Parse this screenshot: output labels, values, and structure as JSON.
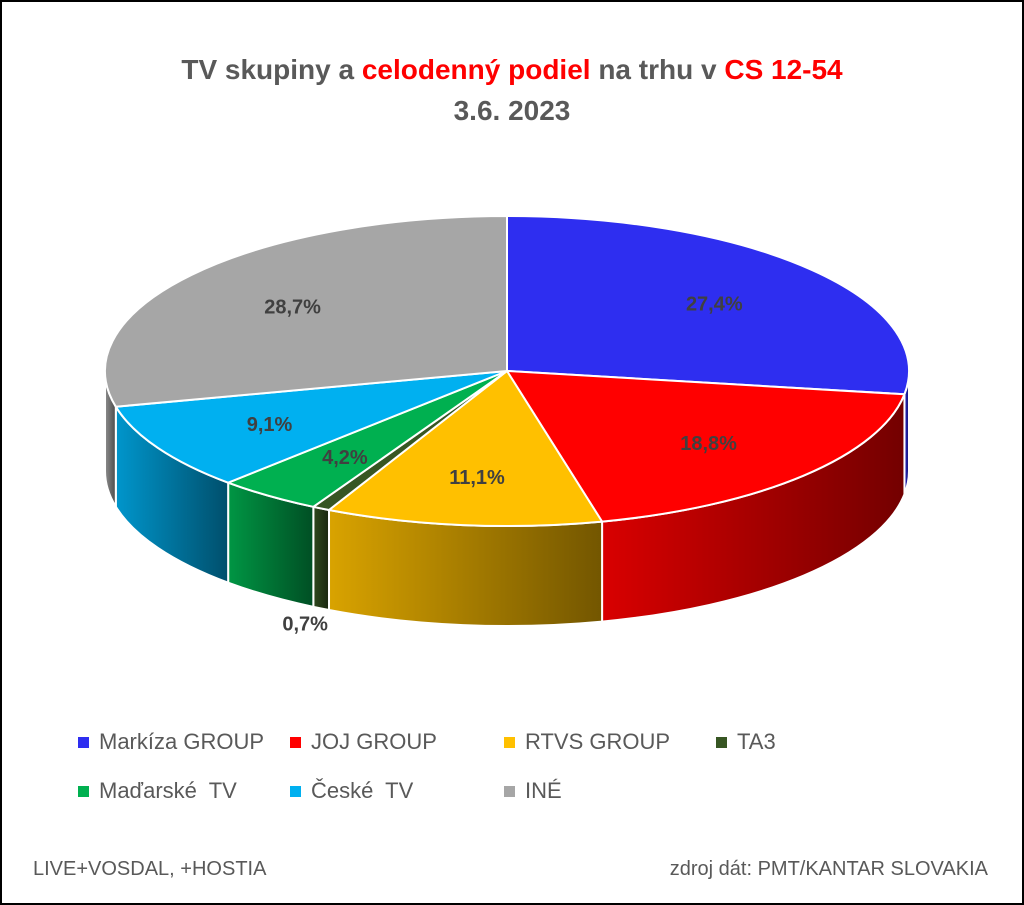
{
  "title": {
    "part1": "TV skupiny a ",
    "part2": "celodenný podiel",
    "part3": " na trhu v ",
    "part4": "CS 12-54",
    "date": "3.6. 2023"
  },
  "footer": {
    "left": "LIVE+VOSDAL, +HOSTIA",
    "right": "zdroj dát: PMT/KANTAR SLOVAKIA"
  },
  "chart_data": {
    "type": "pie",
    "three_d": true,
    "categories": [
      "Markíza GROUP",
      "JOJ GROUP",
      "RTVS GROUP",
      "TA3",
      "Maďarské  TV",
      "České  TV",
      "INÉ"
    ],
    "values": [
      27.4,
      18.8,
      11.1,
      0.7,
      4.2,
      9.1,
      28.7
    ],
    "labels": [
      "27,4%",
      "18,8%",
      "11,1%",
      "0,7%",
      "4,2%",
      "9,1%",
      "28,7%"
    ],
    "colors": [
      "#2e2ef0",
      "#ff0000",
      "#ffc000",
      "#375623",
      "#00b050",
      "#00b0f0",
      "#a6a6a6"
    ],
    "legend_position": "bottom"
  }
}
